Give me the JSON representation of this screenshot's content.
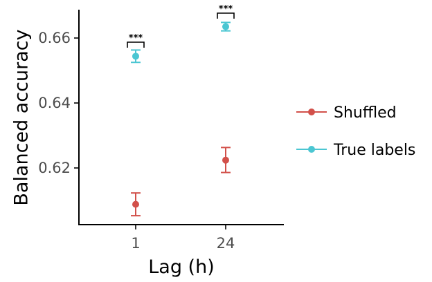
{
  "chart_data": {
    "type": "scatter",
    "title": "",
    "xlabel": "Lag (h)",
    "ylabel": "Balanced accuracy",
    "categories": [
      "1",
      "24"
    ],
    "ylim": [
      0.6,
      0.668
    ],
    "yticks": [
      0.62,
      0.64,
      0.66
    ],
    "ytick_labels": [
      "0.62",
      "0.64",
      "0.66"
    ],
    "grid": false,
    "legend_position": "right",
    "series": [
      {
        "name": "Shuffled",
        "color": "#D2504A",
        "values": [
          0.6088,
          0.6224
        ],
        "error_low": [
          0.6053,
          0.6186
        ],
        "error_high": [
          0.6123,
          0.6263
        ]
      },
      {
        "name": "True labels",
        "color": "#4BC6D2",
        "values": [
          0.6544,
          0.6635
        ],
        "error_low": [
          0.6525,
          0.6622
        ],
        "error_high": [
          0.6563,
          0.6648
        ]
      }
    ],
    "annotations": [
      {
        "category": "1",
        "text": "***"
      },
      {
        "category": "24",
        "text": "***"
      }
    ]
  }
}
